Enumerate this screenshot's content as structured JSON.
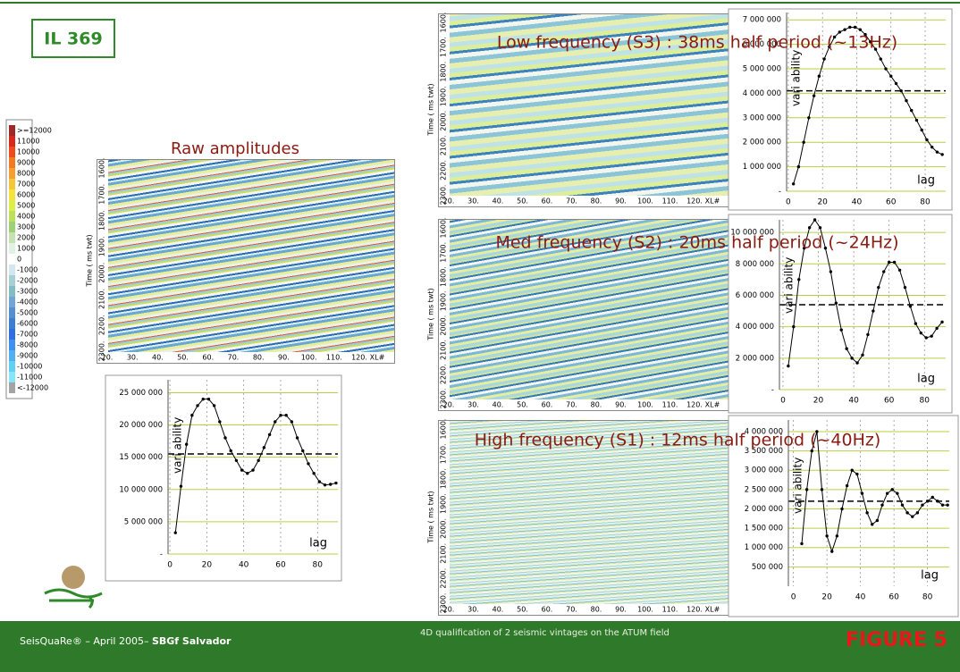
{
  "header": {
    "title": "IL 369"
  },
  "colorbar": {
    "items": [
      {
        "label": ">=12000",
        "color": "#9c2a26"
      },
      {
        "label": "11000",
        "color": "#d8281c"
      },
      {
        "label": "10000",
        "color": "#ee4a20"
      },
      {
        "label": "9000",
        "color": "#f27a22"
      },
      {
        "label": "8000",
        "color": "#f4a030"
      },
      {
        "label": "7000",
        "color": "#f4c63a"
      },
      {
        "label": "6000",
        "color": "#f2e43c"
      },
      {
        "label": "5000",
        "color": "#dcee48"
      },
      {
        "label": "4000",
        "color": "#bce05a"
      },
      {
        "label": "3000",
        "color": "#9ed078"
      },
      {
        "label": "2000",
        "color": "#c4e2b4"
      },
      {
        "label": "1000",
        "color": "#e2f2e2"
      },
      {
        "label": "0",
        "color": "#ffffff"
      },
      {
        "label": "-1000",
        "color": "#d2e8ee"
      },
      {
        "label": "-2000",
        "color": "#a4d0d6"
      },
      {
        "label": "-3000",
        "color": "#82bcc4"
      },
      {
        "label": "-4000",
        "color": "#70a6d6"
      },
      {
        "label": "-5000",
        "color": "#5290d0"
      },
      {
        "label": "-6000",
        "color": "#3e7ed2"
      },
      {
        "label": "-7000",
        "color": "#2e6ee0"
      },
      {
        "label": "-8000",
        "color": "#3e90f0"
      },
      {
        "label": "-9000",
        "color": "#52b0f2"
      },
      {
        "label": "-10000",
        "color": "#62d0f2"
      },
      {
        "label": "-11000",
        "color": "#84e6f8"
      },
      {
        "label": "<-12000",
        "color": "#a4a4a4"
      }
    ]
  },
  "raw_panel": {
    "title": "Raw amplitudes"
  },
  "seismic_axis": {
    "y_label": "Time ( ms twt)",
    "y_ticks": [
      "1600.",
      "1700.",
      "1800.",
      "1900.",
      "2000.",
      "2100.",
      "2200.",
      "2300."
    ],
    "x_ticks": [
      "20.",
      "30.",
      "40.",
      "50.",
      "60.",
      "70.",
      "80.",
      "90.",
      "100.",
      "110.",
      "120."
    ],
    "x_unit": "XL#"
  },
  "frequency_panels": [
    {
      "title": "Low frequency (S3) : 38ms half period (~13Hz)"
    },
    {
      "title": "Med frequency (S2) : 20ms half period (~24Hz)"
    },
    {
      "title": "High frequency (S1) : 12ms half period (~40Hz)"
    }
  ],
  "variograms": [
    {
      "type": "line",
      "y_label": "vari ability",
      "x_label": "lag",
      "color": "#000000",
      "xlim": [
        -1,
        91
      ],
      "ylim": [
        0,
        27000000
      ],
      "xticks": [
        0,
        20,
        40,
        60,
        80
      ],
      "yticks": [
        {
          "value": 0,
          "label": "-"
        },
        {
          "value": 5000000,
          "label": "5 000 000"
        },
        {
          "value": 10000000,
          "label": "10 000 000"
        },
        {
          "value": 15000000,
          "label": "15 000 000"
        },
        {
          "value": 20000000,
          "label": "20 000 000"
        },
        {
          "value": 25000000,
          "label": "25 000 000"
        }
      ],
      "sill": 15500000,
      "x": [
        3,
        6,
        9,
        12,
        15,
        18,
        21,
        24,
        27,
        30,
        33,
        36,
        39,
        42,
        45,
        48,
        51,
        54,
        57,
        60,
        63,
        66,
        69,
        72,
        75,
        78,
        81,
        84,
        87,
        90
      ],
      "values": [
        3300000,
        10500000,
        17000000,
        21500000,
        23000000,
        24000000,
        24000000,
        23000000,
        20500000,
        18000000,
        16000000,
        14500000,
        13000000,
        12500000,
        13000000,
        14500000,
        16500000,
        18500000,
        20500000,
        21500000,
        21500000,
        20500000,
        18000000,
        16000000,
        14000000,
        12500000,
        11200000,
        10700000,
        10800000,
        11000000
      ]
    },
    {
      "type": "line",
      "y_label": "vari ability",
      "x_label": "lag",
      "color": "#000000",
      "xlim": [
        -1,
        92
      ],
      "ylim": [
        0,
        7300000
      ],
      "xticks": [
        0,
        20,
        40,
        60,
        80
      ],
      "yticks": [
        {
          "value": 0,
          "label": "-"
        },
        {
          "value": 1000000,
          "label": "1 000 000"
        },
        {
          "value": 2000000,
          "label": "2 000 000"
        },
        {
          "value": 3000000,
          "label": "3 000 000"
        },
        {
          "value": 4000000,
          "label": "4 000 000"
        },
        {
          "value": 5000000,
          "label": "5 000 000"
        },
        {
          "value": 6000000,
          "label": "6 000 000"
        },
        {
          "value": 7000000,
          "label": "7 000 000"
        }
      ],
      "sill": 4100000,
      "x": [
        3,
        6,
        9,
        12,
        15,
        18,
        21,
        24,
        27,
        30,
        33,
        36,
        39,
        42,
        45,
        48,
        51,
        54,
        57,
        60,
        63,
        66,
        69,
        72,
        75,
        78,
        81,
        84,
        87,
        90
      ],
      "values": [
        300000,
        1000000,
        2000000,
        3000000,
        3900000,
        4700000,
        5400000,
        5900000,
        6300000,
        6500000,
        6600000,
        6700000,
        6700000,
        6600000,
        6400000,
        6100000,
        5800000,
        5400000,
        5000000,
        4700000,
        4400000,
        4100000,
        3700000,
        3300000,
        2900000,
        2500000,
        2100000,
        1800000,
        1600000,
        1500000
      ]
    },
    {
      "type": "line",
      "y_label": "vari ability",
      "x_label": "lag",
      "color": "#000000",
      "xlim": [
        -2,
        92
      ],
      "ylim": [
        0,
        10800000
      ],
      "xticks": [
        0,
        20,
        40,
        60,
        80
      ],
      "yticks": [
        {
          "value": 0,
          "label": "-"
        },
        {
          "value": 2000000,
          "label": "2 000 000"
        },
        {
          "value": 4000000,
          "label": "4 000 000"
        },
        {
          "value": 6000000,
          "label": "6 000 000"
        },
        {
          "value": 8000000,
          "label": "8 000 000"
        },
        {
          "value": 10000000,
          "label": "10 000 000"
        }
      ],
      "sill": 5400000,
      "x": [
        3,
        6,
        9,
        12,
        15,
        18,
        21,
        24,
        27,
        30,
        33,
        36,
        39,
        42,
        45,
        48,
        51,
        54,
        57,
        60,
        63,
        66,
        69,
        72,
        75,
        78,
        81,
        84,
        87,
        90
      ],
      "values": [
        1500000,
        4000000,
        7000000,
        9000000,
        10300000,
        10800000,
        10300000,
        9000000,
        7500000,
        5500000,
        3800000,
        2600000,
        2000000,
        1700000,
        2200000,
        3500000,
        5000000,
        6500000,
        7500000,
        8100000,
        8100000,
        7600000,
        6500000,
        5300000,
        4200000,
        3600000,
        3300000,
        3400000,
        3900000,
        4300000
      ]
    },
    {
      "type": "line",
      "y_label": "vari ability",
      "x_label": "lag",
      "color": "#000000",
      "xlim": [
        -3,
        93
      ],
      "ylim": [
        0,
        4300000
      ],
      "xticks": [
        0,
        20,
        40,
        60,
        80
      ],
      "yticks": [
        {
          "value": 500000,
          "label": "500 000"
        },
        {
          "value": 1000000,
          "label": "1 000 000"
        },
        {
          "value": 1500000,
          "label": "1 500 000"
        },
        {
          "value": 2000000,
          "label": "2 000 000"
        },
        {
          "value": 2500000,
          "label": "2 500 000"
        },
        {
          "value": 3000000,
          "label": "3 000 000"
        },
        {
          "value": 3500000,
          "label": "3 500 000"
        },
        {
          "value": 4000000,
          "label": "4 000 000"
        }
      ],
      "sill": 2200000,
      "x": [
        5,
        8,
        11,
        14,
        17,
        20,
        23,
        26,
        29,
        32,
        35,
        38,
        41,
        44,
        47,
        50,
        53,
        56,
        59,
        62,
        65,
        68,
        71,
        74,
        77,
        80,
        83,
        86,
        89,
        92
      ],
      "values": [
        1100000,
        2500000,
        3500000,
        4000000,
        2500000,
        1300000,
        900000,
        1300000,
        2000000,
        2600000,
        3000000,
        2900000,
        2400000,
        1900000,
        1600000,
        1700000,
        2100000,
        2400000,
        2500000,
        2400000,
        2100000,
        1900000,
        1800000,
        1900000,
        2100000,
        2200000,
        2300000,
        2200000,
        2100000,
        2100000
      ]
    }
  ],
  "footer": {
    "left": "SeisQuaRe® – April 2005– ",
    "left_bold": "SBGf Salvador",
    "center": "4D qualification of 2 seismic vintages on the ATUM field",
    "figure": "FIGURE 5"
  }
}
